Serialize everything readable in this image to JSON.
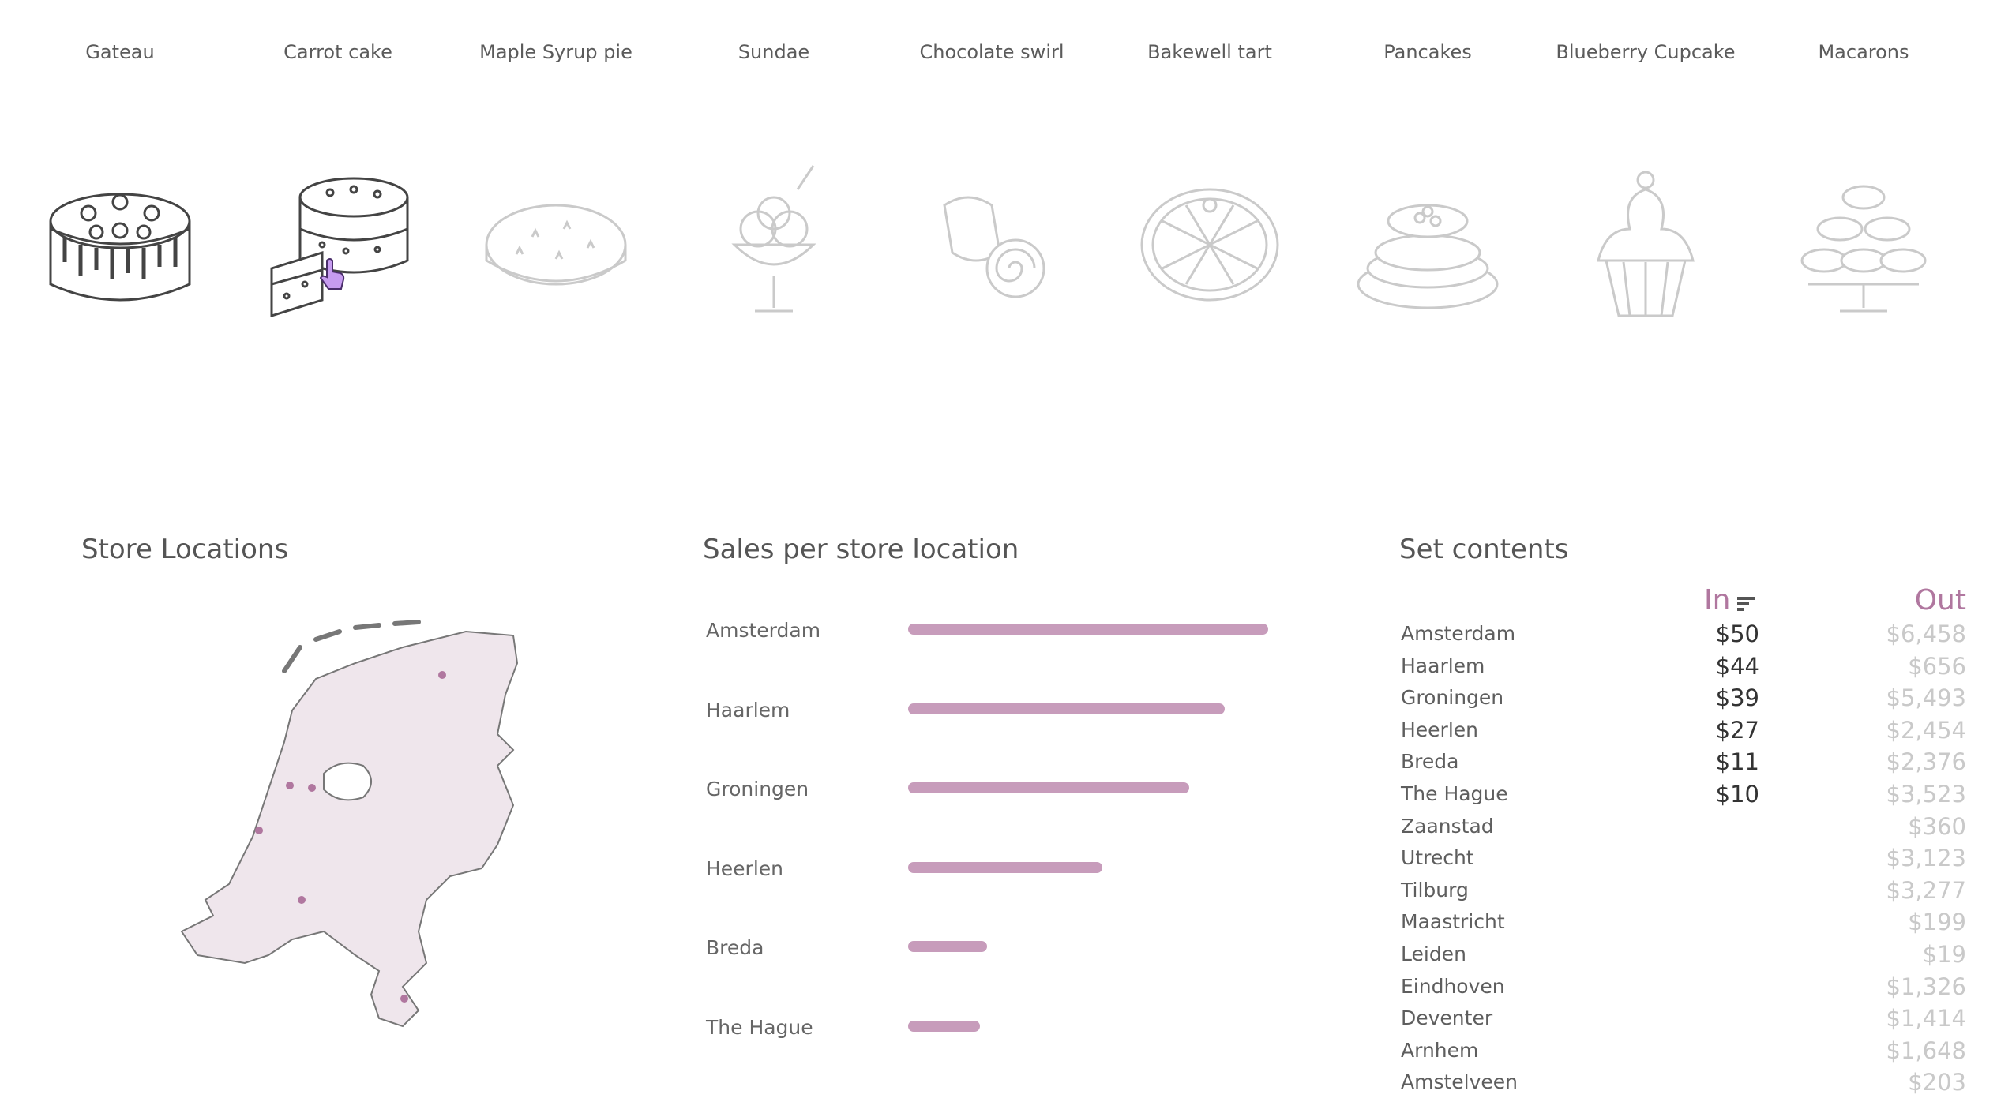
{
  "desserts": [
    {
      "label": "Gateau",
      "selected": true
    },
    {
      "label": "Carrot cake",
      "selected": true,
      "hovered": true
    },
    {
      "label": "Maple Syrup pie",
      "selected": false
    },
    {
      "label": "Sundae",
      "selected": false
    },
    {
      "label": "Chocolate swirl",
      "selected": false
    },
    {
      "label": "Bakewell tart",
      "selected": false
    },
    {
      "label": "Pancakes",
      "selected": false
    },
    {
      "label": "Blueberry Cupcake",
      "selected": false
    },
    {
      "label": "Macarons",
      "selected": false
    }
  ],
  "store_locations": {
    "title": "Store Locations",
    "icon": "netherlands-map",
    "marker_color": "#b0779f",
    "fill_color": "#efe6ec"
  },
  "sales": {
    "title": "Sales per store location",
    "bar_color": "#c79cbb"
  },
  "chart_data": {
    "type": "bar",
    "orientation": "horizontal",
    "title": "Sales per store location",
    "categories": [
      "Amsterdam",
      "Haarlem",
      "Groningen",
      "Heerlen",
      "Breda",
      "The Hague"
    ],
    "values": [
      50,
      44,
      39,
      27,
      11,
      10
    ],
    "xlim": [
      0,
      50
    ],
    "grid": false
  },
  "set_contents": {
    "title": "Set contents",
    "col_in": "In",
    "col_out": "Out",
    "sort_icon": "sort-descending-icon",
    "in_color": "#b0779f",
    "rows": [
      {
        "city": "Amsterdam",
        "in": "$50",
        "out": "$6,458"
      },
      {
        "city": "Haarlem",
        "in": "$44",
        "out": "$656"
      },
      {
        "city": "Groningen",
        "in": "$39",
        "out": "$5,493"
      },
      {
        "city": "Heerlen",
        "in": "$27",
        "out": "$2,454"
      },
      {
        "city": "Breda",
        "in": "$11",
        "out": "$2,376"
      },
      {
        "city": "The Hague",
        "in": "$10",
        "out": "$3,523"
      },
      {
        "city": "Zaanstad",
        "in": "",
        "out": "$360"
      },
      {
        "city": "Utrecht",
        "in": "",
        "out": "$3,123"
      },
      {
        "city": "Tilburg",
        "in": "",
        "out": "$3,277"
      },
      {
        "city": "Maastricht",
        "in": "",
        "out": "$199"
      },
      {
        "city": "Leiden",
        "in": "",
        "out": "$19"
      },
      {
        "city": "Eindhoven",
        "in": "",
        "out": "$1,326"
      },
      {
        "city": "Deventer",
        "in": "",
        "out": "$1,414"
      },
      {
        "city": "Arnhem",
        "in": "",
        "out": "$1,648"
      },
      {
        "city": "Amstelveen",
        "in": "",
        "out": "$203"
      }
    ]
  }
}
